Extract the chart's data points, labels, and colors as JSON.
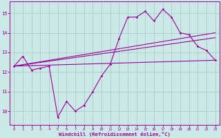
{
  "x": [
    0,
    1,
    2,
    3,
    4,
    5,
    6,
    7,
    8,
    9,
    10,
    11,
    12,
    13,
    14,
    15,
    16,
    17,
    18,
    19,
    20,
    21,
    22,
    23
  ],
  "line1": [
    12.3,
    12.8,
    12.1,
    12.2,
    12.3,
    9.7,
    10.5,
    10.0,
    10.3,
    11.0,
    11.8,
    12.4,
    13.7,
    14.8,
    14.8,
    15.1,
    14.6,
    15.2,
    14.8,
    14.0,
    13.9,
    13.3,
    13.1,
    12.6
  ],
  "line2_pts": [
    [
      0,
      12.3
    ],
    [
      23,
      12.6
    ]
  ],
  "line3_pts": [
    [
      0,
      12.3
    ],
    [
      23,
      14.0
    ]
  ],
  "line4_pts": [
    [
      0,
      12.3
    ],
    [
      23,
      13.75
    ]
  ],
  "color": "#990099",
  "bg_color": "#cce8e8",
  "grid_color": "#aacccc",
  "xlabel": "Windchill (Refroidissement éolien,°C)",
  "yticks": [
    10,
    11,
    12,
    13,
    14,
    15
  ],
  "xticks": [
    0,
    1,
    2,
    3,
    4,
    5,
    6,
    7,
    8,
    9,
    10,
    11,
    12,
    13,
    14,
    15,
    16,
    17,
    18,
    19,
    20,
    21,
    22,
    23
  ],
  "ylim": [
    9.3,
    15.6
  ],
  "xlim": [
    -0.5,
    23.5
  ]
}
